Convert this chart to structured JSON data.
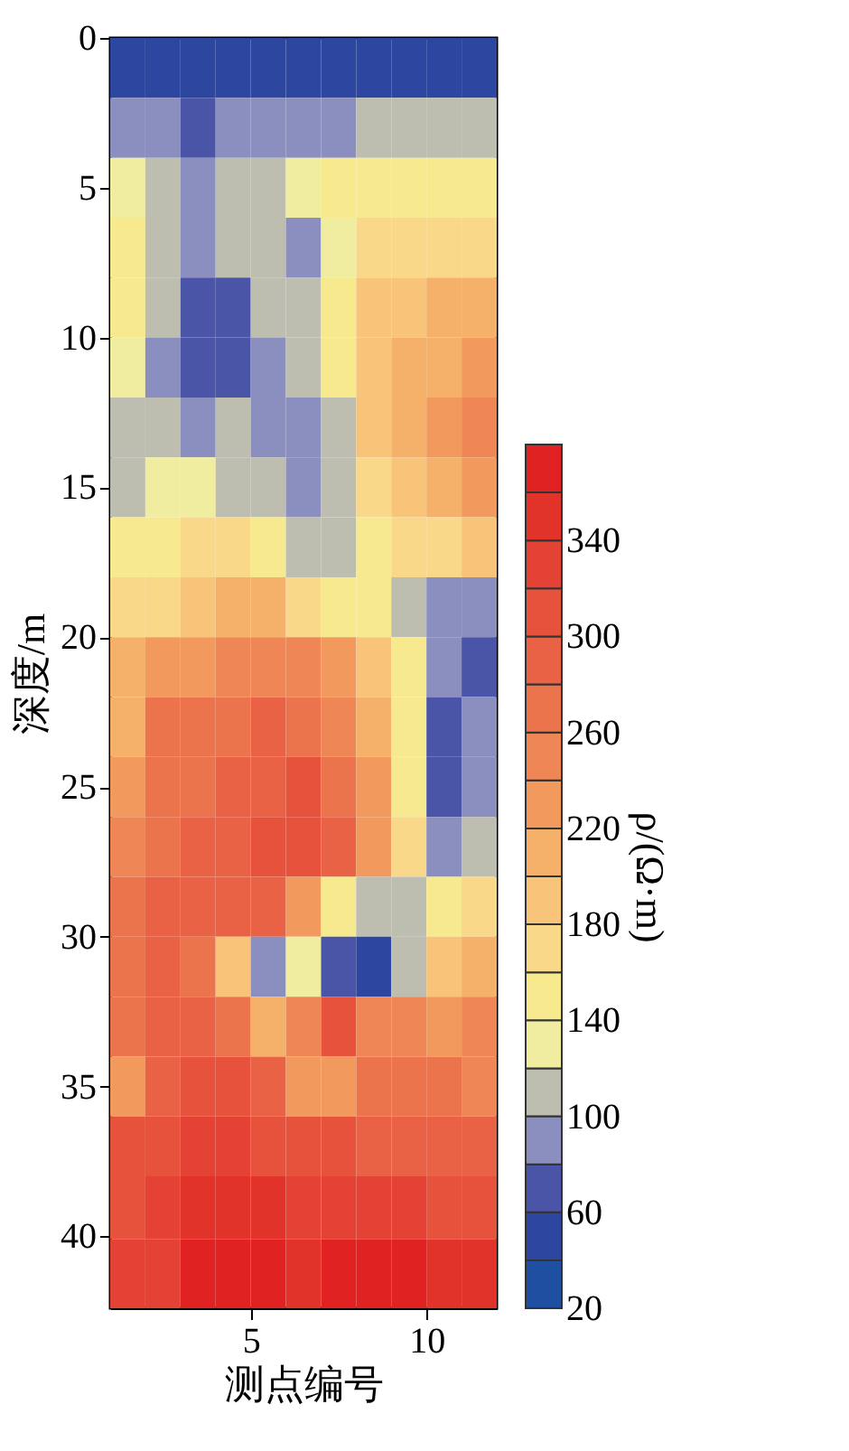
{
  "chart_data": {
    "type": "heatmap",
    "xlabel": "测点编号",
    "ylabel": "深度/m",
    "clabel": "ρ/(Ω·m)",
    "x": [
      1.5,
      2.5,
      3.5,
      4.5,
      5.5,
      6.5,
      7.5,
      8.5,
      9.5,
      10.5,
      11.5
    ],
    "y": [
      1,
      3,
      5,
      7,
      9,
      11,
      13,
      15,
      17,
      19,
      21,
      23,
      25,
      27,
      29,
      31,
      33,
      35,
      37,
      39,
      41.2
    ],
    "cells": [
      [
        40,
        40,
        40,
        40,
        40,
        40,
        40,
        40,
        40,
        40,
        40
      ],
      [
        85,
        85,
        75,
        80,
        85,
        90,
        95,
        100,
        100,
        100,
        100
      ],
      [
        130,
        105,
        95,
        100,
        100,
        125,
        140,
        140,
        140,
        140,
        140
      ],
      [
        140,
        105,
        90,
        100,
        110,
        85,
        120,
        160,
        170,
        170,
        170
      ],
      [
        140,
        100,
        70,
        75,
        105,
        100,
        140,
        180,
        190,
        200,
        200
      ],
      [
        130,
        85,
        70,
        70,
        90,
        105,
        150,
        190,
        200,
        210,
        220
      ],
      [
        110,
        100,
        90,
        100,
        85,
        80,
        115,
        180,
        200,
        220,
        240
      ],
      [
        105,
        130,
        130,
        110,
        105,
        90,
        110,
        160,
        190,
        210,
        230
      ],
      [
        140,
        150,
        160,
        170,
        150,
        105,
        115,
        150,
        160,
        170,
        180
      ],
      [
        160,
        170,
        190,
        200,
        200,
        170,
        150,
        140,
        110,
        85,
        90
      ],
      [
        200,
        220,
        220,
        240,
        250,
        240,
        220,
        180,
        140,
        80,
        70
      ],
      [
        200,
        260,
        260,
        260,
        280,
        270,
        250,
        200,
        150,
        60,
        80
      ],
      [
        220,
        270,
        270,
        280,
        290,
        300,
        270,
        220,
        150,
        60,
        85
      ],
      [
        240,
        270,
        280,
        290,
        300,
        310,
        290,
        220,
        160,
        80,
        105
      ],
      [
        260,
        280,
        280,
        290,
        280,
        220,
        150,
        110,
        100,
        150,
        170
      ],
      [
        260,
        280,
        270,
        180,
        90,
        130,
        60,
        50,
        110,
        190,
        200
      ],
      [
        270,
        290,
        280,
        260,
        200,
        240,
        300,
        250,
        240,
        230,
        240
      ],
      [
        220,
        290,
        300,
        300,
        280,
        220,
        230,
        260,
        260,
        260,
        250
      ],
      [
        300,
        310,
        320,
        330,
        310,
        300,
        300,
        290,
        290,
        280,
        280
      ],
      [
        310,
        320,
        350,
        350,
        340,
        330,
        320,
        320,
        320,
        310,
        310
      ],
      [
        320,
        330,
        360,
        360,
        360,
        350,
        360,
        360,
        360,
        350,
        340
      ]
    ],
    "xlim": [
      1,
      12
    ],
    "xticks": [
      5,
      10
    ],
    "ylim": [
      42.4,
      0
    ],
    "yticks": [
      0,
      5,
      10,
      15,
      20,
      25,
      30,
      35,
      40
    ],
    "clim": [
      20,
      380
    ],
    "cticks": [
      20,
      60,
      100,
      140,
      180,
      220,
      260,
      300,
      340
    ],
    "colors": [
      "#1f4fa0",
      "#2d47a0",
      "#4a55a8",
      "#8a8fc0",
      "#bdbdb0",
      "#f0eda0",
      "#f7ea8e",
      "#fad88a",
      "#f8c47a",
      "#f5b06a",
      "#f29a5e",
      "#ef8655",
      "#ec744d",
      "#e96245",
      "#e6523c",
      "#e44234",
      "#e2332b",
      "#e02222"
    ]
  }
}
